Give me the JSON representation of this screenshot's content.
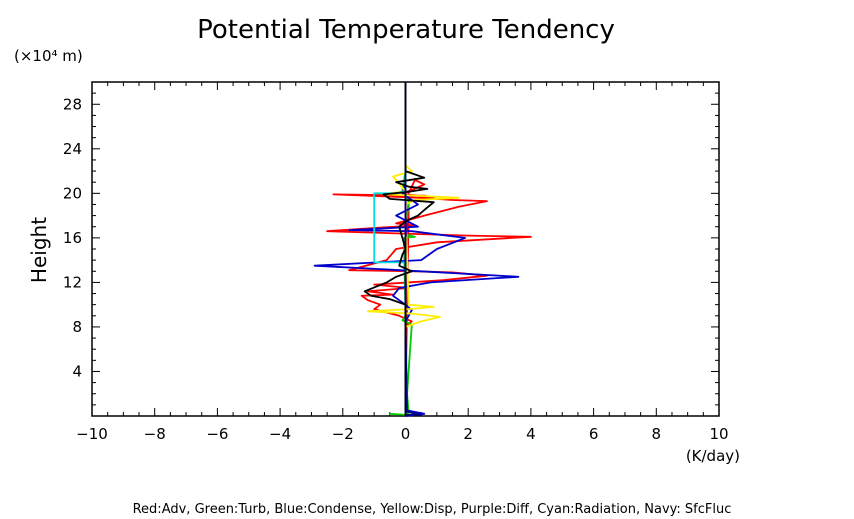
{
  "chart_data": {
    "type": "line",
    "title": "Potential Temperature Tendency",
    "ylabel": "Height",
    "yunits": "(×10⁴ m)",
    "xunits": "(K/day)",
    "xlim": [
      -10,
      10
    ],
    "ylim": [
      0,
      30
    ],
    "xticks": [
      -10,
      -8,
      -6,
      -4,
      -2,
      0,
      2,
      4,
      6,
      8,
      10
    ],
    "yticks": [
      4,
      8,
      12,
      16,
      20,
      24,
      28
    ],
    "legend_text": "Red:Adv, Green:Turb, Blue:Condense, Yellow:Disp, Purple:Diff, Cyan:Radiation, Navy: SfcFluc",
    "legend_placement": "bottom",
    "series": [
      {
        "name": "Adv",
        "color": "#ff0000",
        "x": [
          0,
          0,
          0.03,
          0.05,
          0.1,
          0.1,
          0.3,
          0.6,
          0.2,
          -0.1,
          0,
          0.4,
          0.9,
          0.6,
          -2.3,
          0.5,
          1.5,
          2.6,
          1.7,
          0.6,
          -0.3,
          0.3,
          -0.9,
          -2.5,
          2.0,
          4.0,
          1.0,
          -0.3,
          -0.6,
          -1.8,
          0.3,
          1.5,
          2.6,
          1.2,
          -1.0,
          0.1,
          -1.2,
          -0.4,
          -1.4,
          -1.2,
          -0.8,
          -1.0,
          -0.2,
          0.2,
          0,
          0
        ],
        "y": [
          0,
          2,
          6,
          10,
          18,
          20,
          21.2,
          20.8,
          20.3,
          20.0,
          19.9,
          19.8,
          19.6,
          19.8,
          19.9,
          19.6,
          19.4,
          19.3,
          18.8,
          18.0,
          17.3,
          17.1,
          16.9,
          16.6,
          16.2,
          16.1,
          15.6,
          15.0,
          14.0,
          13.1,
          13.0,
          12.9,
          12.6,
          12.2,
          11.8,
          11.5,
          11.2,
          10.9,
          10.8,
          10.4,
          10.0,
          9.6,
          9.0,
          8.5,
          8.0,
          0
        ]
      },
      {
        "name": "Turb",
        "color": "#00cc00",
        "x": [
          -0.5,
          0,
          0.1,
          0.05,
          0.2,
          -0.1,
          0,
          -0.05,
          0.3,
          0,
          0.1,
          0,
          -0.1,
          0,
          0,
          0
        ],
        "y": [
          0.2,
          0.1,
          0.3,
          2,
          8.2,
          8.6,
          9,
          16,
          16.1,
          16.3,
          19.4,
          19.8,
          20.2,
          22,
          25,
          30
        ]
      },
      {
        "name": "Condense",
        "color": "#0000cc",
        "x": [
          0,
          0.6,
          0.05,
          0,
          0.2,
          0,
          -0.4,
          -0.2,
          0.8,
          3.6,
          0.5,
          -2.9,
          0.5,
          1.0,
          1.9,
          0.2,
          -1.8,
          0.4,
          -0.3,
          0.4,
          -0.1,
          0,
          0
        ],
        "y": [
          0,
          0.2,
          0.5,
          8.5,
          9.5,
          10.0,
          10.8,
          11.5,
          12.0,
          12.5,
          13.0,
          13.5,
          14.0,
          15.0,
          16.0,
          16.6,
          16.7,
          17.0,
          18.0,
          19.0,
          20.0,
          21,
          30
        ]
      },
      {
        "name": "Disp",
        "color": "#ffee00",
        "x": [
          0,
          0,
          0.5,
          1.1,
          0.2,
          -1.2,
          0.1,
          0.9,
          0.1,
          0,
          0.3,
          1.7,
          0.3,
          -0.7,
          0,
          -0.4,
          0.2,
          0,
          0
        ],
        "y": [
          0,
          8.0,
          8.5,
          8.9,
          9.2,
          9.4,
          9.6,
          9.8,
          10.0,
          19.0,
          19.4,
          19.6,
          19.8,
          19.9,
          20.2,
          21.5,
          22.0,
          22.5,
          30
        ]
      },
      {
        "name": "Diff",
        "color": "#800080",
        "x": [
          0,
          0,
          0.05,
          0,
          0
        ],
        "y": [
          0,
          16,
          17,
          18,
          30
        ]
      },
      {
        "name": "Radiation",
        "color": "#00e0e0",
        "x": [
          0,
          0,
          -1.0,
          -1.0,
          -0.3,
          0,
          0
        ],
        "y": [
          0,
          13.8,
          13.8,
          20.0,
          20.0,
          20.2,
          30
        ]
      },
      {
        "name": "SfcFluc",
        "color": "#000080",
        "x": [
          0,
          0.5,
          0,
          0
        ],
        "y": [
          0.1,
          0.1,
          0.4,
          30
        ]
      },
      {
        "name": "Total",
        "color": "#000000",
        "x": [
          0,
          0,
          -0.5,
          -1.1,
          -1.3,
          -0.6,
          -0.3,
          0.2,
          -0.2,
          -0.1,
          0,
          -0.1,
          -0.2,
          0,
          0.4,
          0.6,
          0.9,
          -0.5,
          -0.7,
          0,
          0.7,
          0.1,
          -0.3,
          0.6,
          0,
          0
        ],
        "y": [
          0,
          10.0,
          10.5,
          10.8,
          11.2,
          12.0,
          12.5,
          13.0,
          13.5,
          14.5,
          15.0,
          16.0,
          17.0,
          17.5,
          18.0,
          18.5,
          19.2,
          19.5,
          19.9,
          20.1,
          20.4,
          20.6,
          21.0,
          21.4,
          22.0,
          30
        ]
      }
    ]
  }
}
